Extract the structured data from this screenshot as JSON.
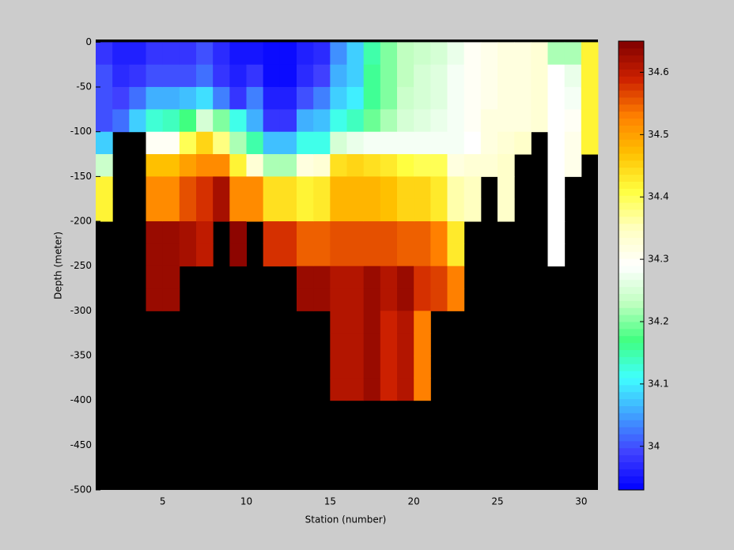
{
  "chart_data": {
    "type": "heatmap",
    "x_label": "Station (number)",
    "y_label": "Depth (meter)",
    "xlim": [
      1,
      31
    ],
    "xticks": [
      5,
      10,
      15,
      20,
      25,
      30
    ],
    "ylim": [
      -500,
      3
    ],
    "yticks": [
      0,
      -50,
      -100,
      -150,
      -200,
      -250,
      -300,
      -350,
      -400,
      -450,
      -500
    ],
    "x": [
      1,
      2,
      3,
      4,
      5,
      6,
      7,
      8,
      9,
      10,
      11,
      12,
      13,
      14,
      15,
      16,
      17,
      18,
      19,
      20,
      21,
      22,
      23,
      24,
      25,
      26,
      27,
      28,
      29,
      30
    ],
    "depths": [
      0,
      -25,
      -50,
      -75,
      -100,
      -125,
      -150,
      -175,
      -200,
      -225,
      -250,
      -275,
      -300,
      -325,
      -350,
      -375,
      -400,
      -425,
      -450,
      -475
    ],
    "clim": [
      33.93,
      34.65
    ],
    "cticks": [
      34,
      34.1,
      34.2,
      34.3,
      34.4,
      34.5,
      34.6
    ],
    "colormap": [
      "#0000ff",
      "#4040ff",
      "#40a0ff",
      "#40ffff",
      "#40ff80",
      "#c0ffc0",
      "#ffffff",
      "#ffffc0",
      "#ffff40",
      "#ffc000",
      "#ff8000",
      "#cc2000",
      "#800000"
    ],
    "background": "#000000",
    "values": [
      [
        33.98,
        34.0,
        34.0,
        34.0,
        34.08,
        34.24,
        34.42,
        34.42,
        null,
        null,
        null,
        null,
        null,
        null,
        null,
        null,
        null,
        null,
        null,
        null
      ],
      [
        33.96,
        33.97,
        33.99,
        34.02,
        null,
        null,
        null,
        null,
        null,
        null,
        null,
        null,
        null,
        null,
        null,
        null,
        null,
        null,
        null,
        null
      ],
      [
        33.96,
        33.98,
        34.02,
        34.08,
        null,
        null,
        null,
        null,
        null,
        null,
        null,
        null,
        null,
        null,
        null,
        null,
        null,
        null,
        null,
        null
      ],
      [
        33.98,
        34.0,
        34.06,
        34.13,
        34.3,
        34.47,
        34.52,
        34.52,
        34.63,
        34.63,
        34.63,
        34.63,
        null,
        null,
        null,
        null,
        null,
        null,
        null,
        null
      ],
      [
        33.98,
        34.0,
        34.06,
        34.14,
        34.3,
        34.47,
        34.52,
        34.52,
        34.63,
        34.63,
        34.63,
        34.63,
        null,
        null,
        null,
        null,
        null,
        null,
        null,
        null
      ],
      [
        33.98,
        34.0,
        34.07,
        34.17,
        34.4,
        34.5,
        34.56,
        34.56,
        34.62,
        34.62,
        null,
        null,
        null,
        null,
        null,
        null,
        null,
        null,
        null,
        null
      ],
      [
        34.0,
        34.02,
        34.09,
        34.25,
        34.45,
        34.52,
        34.58,
        34.58,
        34.6,
        34.6,
        null,
        null,
        null,
        null,
        null,
        null,
        null,
        null,
        null,
        null
      ],
      [
        33.97,
        33.98,
        34.03,
        34.2,
        34.38,
        34.52,
        34.62,
        34.62,
        null,
        null,
        null,
        null,
        null,
        null,
        null,
        null,
        null,
        null,
        null,
        null
      ],
      [
        33.95,
        33.96,
        33.98,
        34.12,
        34.22,
        34.42,
        34.52,
        34.52,
        34.64,
        34.64,
        null,
        null,
        null,
        null,
        null,
        null,
        null,
        null,
        null,
        null
      ],
      [
        33.95,
        33.98,
        34.03,
        34.06,
        34.15,
        34.33,
        34.52,
        34.52,
        null,
        null,
        null,
        null,
        null,
        null,
        null,
        null,
        null,
        null,
        null,
        null
      ],
      [
        33.94,
        33.94,
        33.96,
        33.98,
        34.07,
        34.22,
        34.44,
        34.44,
        34.58,
        34.58,
        null,
        null,
        null,
        null,
        null,
        null,
        null,
        null,
        null,
        null
      ],
      [
        33.94,
        33.94,
        33.96,
        33.98,
        34.07,
        34.22,
        34.44,
        34.44,
        34.58,
        34.58,
        null,
        null,
        null,
        null,
        null,
        null,
        null,
        null,
        null,
        null
      ],
      [
        33.96,
        33.97,
        34.0,
        34.06,
        34.12,
        34.32,
        34.42,
        34.42,
        34.55,
        34.55,
        34.63,
        34.63,
        null,
        null,
        null,
        null,
        null,
        null,
        null,
        null
      ],
      [
        33.97,
        33.99,
        34.03,
        34.07,
        34.12,
        34.33,
        34.43,
        34.43,
        34.55,
        34.55,
        34.63,
        34.63,
        null,
        null,
        null,
        null,
        null,
        null,
        null,
        null
      ],
      [
        34.04,
        34.06,
        34.08,
        34.12,
        34.25,
        34.44,
        34.48,
        34.48,
        34.56,
        34.56,
        34.61,
        34.61,
        34.61,
        34.61,
        34.61,
        34.61,
        null,
        null,
        null,
        null
      ],
      [
        34.08,
        34.08,
        34.1,
        34.14,
        34.27,
        34.45,
        34.48,
        34.48,
        34.56,
        34.56,
        34.61,
        34.61,
        34.61,
        34.61,
        34.61,
        34.61,
        null,
        null,
        null,
        null
      ],
      [
        34.15,
        34.16,
        34.16,
        34.19,
        34.28,
        34.44,
        34.48,
        34.48,
        34.56,
        34.56,
        34.63,
        34.63,
        34.63,
        34.63,
        34.63,
        34.63,
        null,
        null,
        null,
        null
      ],
      [
        34.2,
        34.2,
        34.2,
        34.22,
        34.28,
        34.43,
        34.47,
        34.47,
        34.56,
        34.56,
        34.61,
        34.61,
        34.59,
        34.59,
        34.59,
        34.59,
        null,
        null,
        null,
        null
      ],
      [
        34.23,
        34.23,
        34.24,
        34.25,
        34.28,
        34.41,
        34.45,
        34.45,
        34.55,
        34.55,
        34.63,
        34.63,
        34.61,
        34.61,
        34.61,
        34.61,
        null,
        null,
        null,
        null
      ],
      [
        34.24,
        34.25,
        34.25,
        34.26,
        34.28,
        34.4,
        34.45,
        34.45,
        34.55,
        34.55,
        34.58,
        34.58,
        34.53,
        34.53,
        34.53,
        34.53,
        null,
        null,
        null,
        null
      ],
      [
        34.25,
        34.26,
        34.26,
        34.27,
        34.28,
        34.4,
        34.43,
        34.43,
        34.53,
        34.53,
        34.57,
        34.57,
        null,
        null,
        null,
        null,
        null,
        null,
        null,
        null
      ],
      [
        34.27,
        34.28,
        34.28,
        34.28,
        34.28,
        34.32,
        34.36,
        34.36,
        34.43,
        34.43,
        34.53,
        34.53,
        null,
        null,
        null,
        null,
        null,
        null,
        null,
        null
      ],
      [
        34.3,
        34.3,
        34.3,
        34.3,
        34.29,
        34.33,
        34.35,
        34.35,
        null,
        null,
        null,
        null,
        null,
        null,
        null,
        null,
        null,
        null,
        null,
        null
      ],
      [
        34.31,
        34.31,
        34.31,
        34.32,
        34.32,
        34.33,
        null,
        null,
        null,
        null,
        null,
        null,
        null,
        null,
        null,
        null,
        null,
        null,
        null,
        null
      ],
      [
        34.32,
        34.32,
        34.32,
        34.32,
        34.33,
        34.34,
        34.34,
        34.34,
        null,
        null,
        null,
        null,
        null,
        null,
        null,
        null,
        null,
        null,
        null,
        null
      ],
      [
        34.32,
        34.32,
        34.32,
        34.32,
        34.34,
        null,
        null,
        null,
        null,
        null,
        null,
        null,
        null,
        null,
        null,
        null,
        null,
        null,
        null,
        null
      ],
      [
        34.33,
        34.33,
        34.33,
        34.33,
        null,
        null,
        null,
        null,
        null,
        null,
        null,
        null,
        null,
        null,
        null,
        null,
        null,
        null,
        null,
        null
      ],
      [
        34.22,
        34.29,
        34.29,
        34.29,
        34.29,
        34.29,
        34.29,
        34.29,
        34.29,
        34.29,
        null,
        null,
        null,
        null,
        null,
        null,
        null,
        null,
        null,
        null
      ],
      [
        34.22,
        34.27,
        34.28,
        34.3,
        34.31,
        34.31,
        null,
        null,
        null,
        null,
        null,
        null,
        null,
        null,
        null,
        null,
        null,
        null,
        null,
        null
      ],
      [
        34.42,
        34.42,
        34.42,
        34.42,
        34.42,
        null,
        null,
        null,
        null,
        null,
        null,
        null,
        null,
        null,
        null,
        null,
        null,
        null,
        null,
        null
      ]
    ]
  }
}
